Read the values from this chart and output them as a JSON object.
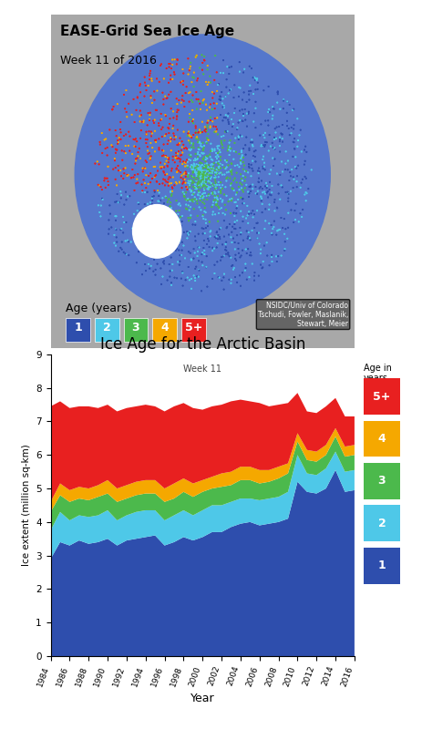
{
  "title": "Ice Age for the Arctic Basin",
  "subtitle": "Week 11",
  "xlabel": "Year",
  "ylabel": "Ice extent (million sq-km)",
  "ylim": [
    0,
    9
  ],
  "yticks": [
    0,
    1,
    2,
    3,
    4,
    5,
    6,
    7,
    8,
    9
  ],
  "years": [
    1984,
    1985,
    1986,
    1987,
    1988,
    1989,
    1990,
    1991,
    1992,
    1993,
    1994,
    1995,
    1996,
    1997,
    1998,
    1999,
    2000,
    2001,
    2002,
    2003,
    2004,
    2005,
    2006,
    2007,
    2008,
    2009,
    2010,
    2011,
    2012,
    2013,
    2014,
    2015,
    2016
  ],
  "age1": [
    2.9,
    3.4,
    3.3,
    3.45,
    3.35,
    3.4,
    3.5,
    3.3,
    3.45,
    3.5,
    3.55,
    3.6,
    3.3,
    3.4,
    3.55,
    3.45,
    3.55,
    3.7,
    3.7,
    3.85,
    3.95,
    4.0,
    3.9,
    3.95,
    4.0,
    4.1,
    5.2,
    4.9,
    4.85,
    5.0,
    5.55,
    4.9,
    4.95
  ],
  "age2": [
    0.85,
    0.9,
    0.75,
    0.75,
    0.8,
    0.8,
    0.85,
    0.75,
    0.75,
    0.8,
    0.8,
    0.75,
    0.75,
    0.8,
    0.8,
    0.75,
    0.8,
    0.8,
    0.8,
    0.75,
    0.75,
    0.7,
    0.75,
    0.75,
    0.75,
    0.8,
    0.8,
    0.55,
    0.55,
    0.6,
    0.55,
    0.6,
    0.6
  ],
  "age3": [
    0.55,
    0.5,
    0.55,
    0.5,
    0.5,
    0.55,
    0.5,
    0.55,
    0.5,
    0.5,
    0.5,
    0.5,
    0.55,
    0.5,
    0.55,
    0.55,
    0.55,
    0.5,
    0.55,
    0.5,
    0.55,
    0.55,
    0.5,
    0.5,
    0.55,
    0.55,
    0.4,
    0.4,
    0.4,
    0.4,
    0.45,
    0.45,
    0.45
  ],
  "age4": [
    0.3,
    0.35,
    0.35,
    0.35,
    0.35,
    0.35,
    0.4,
    0.4,
    0.4,
    0.4,
    0.4,
    0.4,
    0.4,
    0.45,
    0.4,
    0.4,
    0.35,
    0.35,
    0.4,
    0.4,
    0.4,
    0.4,
    0.4,
    0.35,
    0.35,
    0.3,
    0.25,
    0.3,
    0.3,
    0.3,
    0.25,
    0.3,
    0.3
  ],
  "age5p": [
    2.85,
    2.45,
    2.45,
    2.4,
    2.45,
    2.3,
    2.25,
    2.3,
    2.3,
    2.25,
    2.25,
    2.2,
    2.3,
    2.3,
    2.25,
    2.25,
    2.1,
    2.1,
    2.05,
    2.1,
    2.0,
    1.95,
    2.0,
    1.9,
    1.85,
    1.8,
    1.2,
    1.15,
    1.15,
    1.15,
    0.9,
    0.9,
    0.85
  ],
  "colors": {
    "age1": "#2E4EAD",
    "age2": "#4EC8E8",
    "age3": "#4CB94C",
    "age4": "#F5A800",
    "age5p": "#E82020"
  },
  "legend_labels": [
    "5+",
    "4",
    "3",
    "2",
    "1"
  ],
  "legend_colors": [
    "#E82020",
    "#F5A800",
    "#4CB94C",
    "#4EC8E8",
    "#2E4EAD"
  ],
  "map_title": "EASE-Grid Sea Ice Age",
  "map_subtitle": "Week 11 of 2016",
  "age_legend_colors": [
    "#2E4EAD",
    "#4EC8E8",
    "#4CB94C",
    "#F5A800",
    "#E82020"
  ],
  "age_legend_labels": [
    "1",
    "2",
    "3",
    "4",
    "5+"
  ]
}
